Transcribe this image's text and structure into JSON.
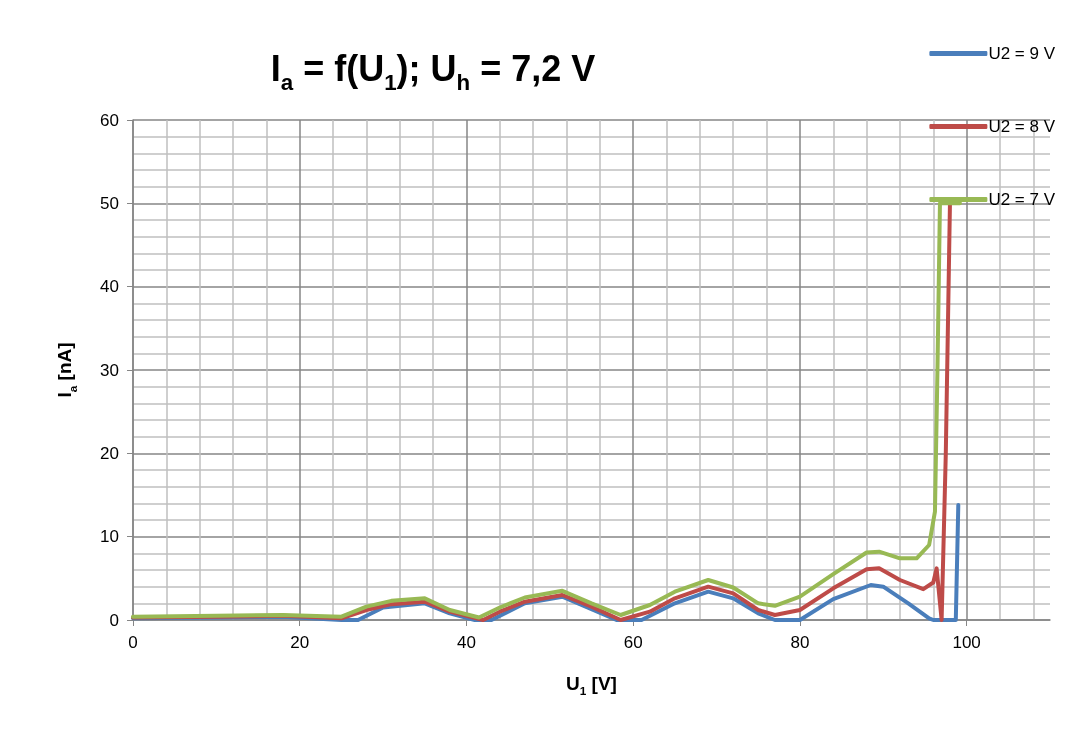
{
  "chart_data": {
    "type": "line",
    "title": "I$_{a}$ = f(U$_{1}$); U$_{h}$ = 7,2 V",
    "xlabel": "U$_{1}$ [V]",
    "ylabel": "I$_{a}$ [nA]",
    "xlim": [
      0,
      110
    ],
    "xticks": [
      0,
      20,
      40,
      60,
      80,
      100
    ],
    "ylim": [
      0,
      60
    ],
    "yticks": [
      0,
      10,
      20,
      30,
      40,
      50,
      60
    ],
    "grid": true,
    "legend": "top right",
    "marker": "none",
    "line_style": "solid",
    "series": [
      {
        "name": "U2 = 9 V",
        "color": "#4a7ebb",
        "x": [
          0,
          10,
          18,
          25,
          27,
          30,
          35,
          38,
          41,
          43,
          47,
          51.5,
          55,
          58,
          61,
          65,
          69,
          72,
          75,
          77,
          80,
          84,
          88.5,
          90,
          93,
          95.5,
          96,
          98.7,
          99
        ],
        "values": [
          0.2,
          0.3,
          0.4,
          0,
          0,
          1.5,
          2.0,
          0.8,
          0,
          0,
          2.0,
          2.8,
          1.3,
          0,
          0,
          2.0,
          3.4,
          2.6,
          0.8,
          0,
          0,
          2.5,
          4.2,
          4.0,
          2.0,
          0.2,
          0,
          0,
          13.8
        ]
      },
      {
        "name": "U2 = 8 V",
        "color": "#be4b48",
        "x": [
          0,
          10,
          18,
          25,
          28,
          31,
          35,
          38,
          42,
          44,
          47,
          51.5,
          55,
          58.5,
          62,
          65,
          69,
          72,
          75,
          77,
          80,
          84,
          88,
          89.5,
          92,
          94.8,
          96,
          96.4,
          97,
          97.5,
          98
        ],
        "values": [
          0.3,
          0.4,
          0.5,
          0.2,
          1.2,
          1.9,
          2.2,
          1.0,
          0,
          1.0,
          2.2,
          3.0,
          1.6,
          0,
          1.0,
          2.6,
          4.0,
          3.2,
          1.2,
          0.6,
          1.2,
          3.8,
          6.1,
          6.2,
          4.8,
          3.7,
          4.5,
          6.2,
          0,
          20,
          50
        ]
      },
      {
        "name": "U2 = 7 V",
        "color": "#98b954",
        "x": [
          0,
          10,
          18,
          25,
          28,
          31,
          35,
          38,
          41.5,
          44,
          47,
          51.5,
          55,
          58.5,
          62,
          65,
          69,
          72,
          75,
          77,
          80,
          84,
          88,
          89.5,
          92,
          94,
          95.5,
          96.2,
          96.5,
          96.8,
          99.2
        ],
        "values": [
          0.4,
          0.5,
          0.6,
          0.4,
          1.6,
          2.3,
          2.6,
          1.2,
          0.3,
          1.5,
          2.7,
          3.5,
          2.0,
          0.6,
          1.8,
          3.4,
          4.8,
          3.9,
          2.0,
          1.7,
          2.8,
          5.5,
          8.1,
          8.2,
          7.4,
          7.4,
          9,
          13,
          30,
          50,
          50
        ]
      }
    ]
  }
}
